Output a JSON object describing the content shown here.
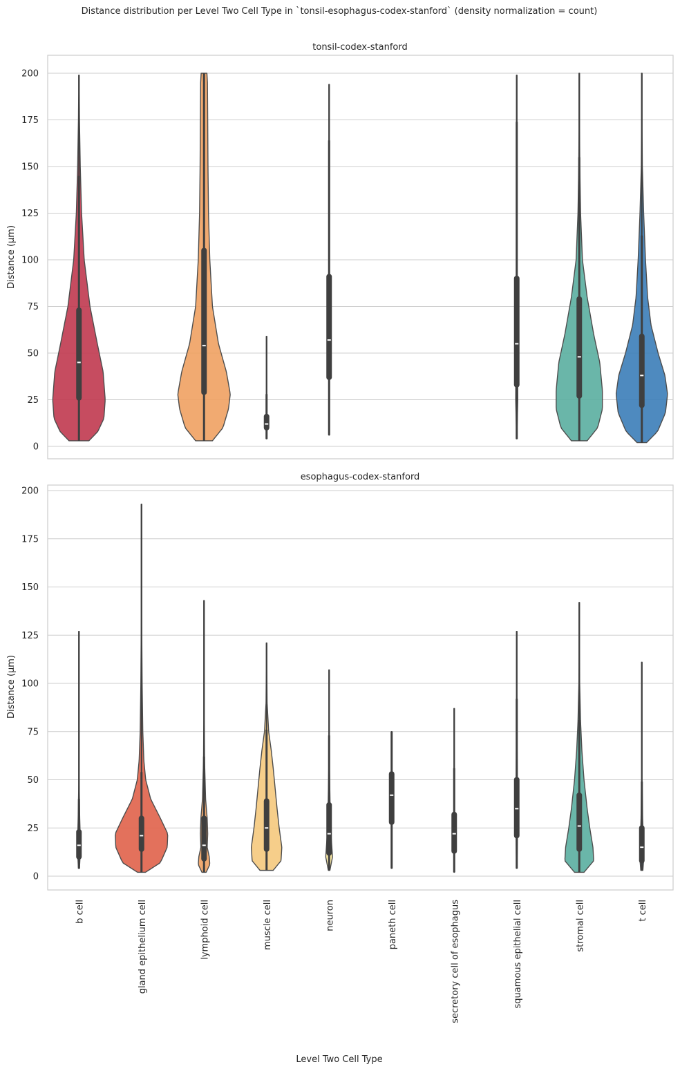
{
  "chart_data": {
    "type": "violin",
    "title": "Distance distribution per Level Two Cell Type in `tonsil-esophagus-codex-stanford` (density normalization = count)",
    "xlabel": "Level Two Cell Type",
    "ylabel": "Distance (μm)",
    "categories": [
      "b cell",
      "gland epithelium cell",
      "lymphoid cell",
      "muscle cell",
      "neuron",
      "paneth cell",
      "secretory cell of esophagus",
      "squamous epithelial cell",
      "stromal cell",
      "t cell"
    ],
    "colors": [
      "#c0394f",
      "#e0624a",
      "#f0a162",
      "#f5c97d",
      "#f7e59a",
      "#d8ecb0",
      "#a8d8a6",
      "#7fc6a4",
      "#5aaea0",
      "#3b7db8"
    ],
    "panels": [
      {
        "title": "tonsil-codex-stanford",
        "ylim": [
          -7,
          210
        ],
        "yticks": [
          0,
          25,
          50,
          75,
          100,
          125,
          150,
          175,
          200
        ],
        "violins": [
          {
            "category": "b cell",
            "min": 3,
            "max": 199,
            "q1": 26,
            "median": 45,
            "q3": 73,
            "whisker_low": 3,
            "whisker_high": 145,
            "profile": [
              [
                3,
                0.38
              ],
              [
                8,
                0.72
              ],
              [
                15,
                0.95
              ],
              [
                25,
                1.0
              ],
              [
                40,
                0.92
              ],
              [
                55,
                0.7
              ],
              [
                75,
                0.42
              ],
              [
                100,
                0.2
              ],
              [
                125,
                0.1
              ],
              [
                150,
                0.05
              ],
              [
                175,
                0.02
              ],
              [
                199,
                0.005
              ]
            ]
          },
          {
            "category": "lymphoid cell",
            "min": 3,
            "max": 200,
            "q1": 29,
            "median": 54,
            "q3": 105,
            "whisker_low": 3,
            "whisker_high": 200,
            "profile": [
              [
                3,
                0.32
              ],
              [
                10,
                0.72
              ],
              [
                20,
                0.93
              ],
              [
                28,
                1.0
              ],
              [
                40,
                0.85
              ],
              [
                55,
                0.55
              ],
              [
                75,
                0.32
              ],
              [
                100,
                0.22
              ],
              [
                125,
                0.17
              ],
              [
                150,
                0.15
              ],
              [
                175,
                0.14
              ],
              [
                195,
                0.13
              ],
              [
                200,
                0.11
              ]
            ]
          },
          {
            "category": "muscle cell",
            "min": 4,
            "max": 59,
            "q1": 10,
            "median": 12,
            "q3": 16,
            "whisker_low": 4,
            "whisker_high": 28,
            "profile": [
              [
                4,
                0.004
              ],
              [
                12,
                0.008
              ],
              [
                30,
                0.004
              ],
              [
                59,
                0.001
              ]
            ]
          },
          {
            "category": "neuron",
            "min": 6,
            "max": 194,
            "q1": 37,
            "median": 57,
            "q3": 91,
            "whisker_low": 6,
            "whisker_high": 164,
            "profile": [
              [
                6,
                0.002
              ],
              [
                50,
                0.006
              ],
              [
                90,
                0.004
              ],
              [
                194,
                0.001
              ]
            ]
          },
          {
            "category": "squamous epithelial cell",
            "min": 4,
            "max": 199,
            "q1": 33,
            "median": 55,
            "q3": 90,
            "whisker_low": 4,
            "whisker_high": 174,
            "profile": [
              [
                4,
                0.004
              ],
              [
                25,
                0.04
              ],
              [
                45,
                0.035
              ],
              [
                75,
                0.02
              ],
              [
                110,
                0.012
              ],
              [
                150,
                0.006
              ],
              [
                199,
                0.002
              ]
            ]
          },
          {
            "category": "stromal cell",
            "min": 3,
            "max": 200,
            "q1": 27,
            "median": 48,
            "q3": 79,
            "whisker_low": 3,
            "whisker_high": 155,
            "profile": [
              [
                3,
                0.3
              ],
              [
                10,
                0.7
              ],
              [
                20,
                0.88
              ],
              [
                30,
                0.88
              ],
              [
                45,
                0.78
              ],
              [
                60,
                0.55
              ],
              [
                80,
                0.3
              ],
              [
                100,
                0.12
              ],
              [
                125,
                0.05
              ],
              [
                150,
                0.02
              ],
              [
                175,
                0.008
              ],
              [
                200,
                0.004
              ]
            ]
          },
          {
            "category": "t cell",
            "min": 2,
            "max": 200,
            "q1": 22,
            "median": 38,
            "q3": 59,
            "whisker_low": 2,
            "whisker_high": 113,
            "profile": [
              [
                2,
                0.18
              ],
              [
                8,
                0.6
              ],
              [
                18,
                0.9
              ],
              [
                28,
                0.98
              ],
              [
                38,
                0.88
              ],
              [
                50,
                0.62
              ],
              [
                65,
                0.35
              ],
              [
                80,
                0.22
              ],
              [
                100,
                0.14
              ],
              [
                125,
                0.07
              ],
              [
                150,
                0.02
              ],
              [
                175,
                0.008
              ],
              [
                200,
                0.004
              ]
            ]
          }
        ]
      },
      {
        "title": "esophagus-codex-stanford",
        "ylim": [
          -7,
          202
        ],
        "yticks": [
          0,
          25,
          50,
          75,
          100,
          125,
          150,
          175,
          200
        ],
        "violins": [
          {
            "category": "b cell",
            "min": 4,
            "max": 127,
            "q1": 10,
            "median": 16,
            "q3": 23,
            "whisker_low": 4,
            "whisker_high": 40,
            "profile": [
              [
                4,
                0.02
              ],
              [
                12,
                0.05
              ],
              [
                20,
                0.05
              ],
              [
                30,
                0.03
              ],
              [
                45,
                0.012
              ],
              [
                70,
                0.005
              ],
              [
                127,
                0.001
              ]
            ]
          },
          {
            "category": "gland epithelium cell",
            "min": 2,
            "max": 193,
            "q1": 14,
            "median": 21,
            "q3": 30,
            "whisker_low": 2,
            "whisker_high": 54,
            "profile": [
              [
                2,
                0.15
              ],
              [
                7,
                0.72
              ],
              [
                15,
                0.98
              ],
              [
                22,
                1.0
              ],
              [
                30,
                0.72
              ],
              [
                40,
                0.35
              ],
              [
                50,
                0.16
              ],
              [
                60,
                0.09
              ],
              [
                75,
                0.05
              ],
              [
                100,
                0.025
              ],
              [
                125,
                0.012
              ],
              [
                150,
                0.008
              ],
              [
                175,
                0.004
              ],
              [
                193,
                0.002
              ]
            ]
          },
          {
            "category": "lymphoid cell",
            "min": 2,
            "max": 143,
            "q1": 9,
            "median": 16,
            "q3": 30,
            "whisker_low": 2,
            "whisker_high": 62,
            "profile": [
              [
                2,
                0.08
              ],
              [
                6,
                0.22
              ],
              [
                10,
                0.2
              ],
              [
                15,
                0.12
              ],
              [
                22,
                0.14
              ],
              [
                30,
                0.12
              ],
              [
                40,
                0.06
              ],
              [
                60,
                0.02
              ],
              [
                90,
                0.006
              ],
              [
                143,
                0.001
              ]
            ]
          },
          {
            "category": "muscle cell",
            "min": 3,
            "max": 121,
            "q1": 14,
            "median": 25,
            "q3": 39,
            "whisker_low": 3,
            "whisker_high": 76,
            "profile": [
              [
                3,
                0.25
              ],
              [
                8,
                0.55
              ],
              [
                15,
                0.58
              ],
              [
                25,
                0.48
              ],
              [
                35,
                0.4
              ],
              [
                45,
                0.33
              ],
              [
                55,
                0.26
              ],
              [
                65,
                0.18
              ],
              [
                75,
                0.08
              ],
              [
                90,
                0.02
              ],
              [
                121,
                0.003
              ]
            ]
          },
          {
            "category": "neuron",
            "min": 3,
            "max": 107,
            "q1": 12,
            "median": 22,
            "q3": 37,
            "whisker_low": 3,
            "whisker_high": 73,
            "profile": [
              [
                3,
                0.03
              ],
              [
                10,
                0.13
              ],
              [
                20,
                0.08
              ],
              [
                35,
                0.04
              ],
              [
                55,
                0.015
              ],
              [
                80,
                0.004
              ],
              [
                107,
                0.001
              ]
            ]
          },
          {
            "category": "paneth cell",
            "min": 4,
            "max": 75,
            "q1": 28,
            "median": 42,
            "q3": 53,
            "whisker_low": 4,
            "whisker_high": 75,
            "profile": [
              [
                4,
                0.004
              ],
              [
                40,
                0.01
              ],
              [
                75,
                0.004
              ]
            ]
          },
          {
            "category": "secretory cell of esophagus",
            "min": 2,
            "max": 87,
            "q1": 13,
            "median": 22,
            "q3": 32,
            "whisker_low": 2,
            "whisker_high": 56,
            "profile": [
              [
                2,
                0.004
              ],
              [
                20,
                0.012
              ],
              [
                50,
                0.005
              ],
              [
                87,
                0.001
              ]
            ]
          },
          {
            "category": "squamous epithelial cell",
            "min": 4,
            "max": 127,
            "q1": 21,
            "median": 35,
            "q3": 50,
            "whisker_low": 4,
            "whisker_high": 92,
            "profile": [
              [
                4,
                0.01
              ],
              [
                20,
                0.025
              ],
              [
                35,
                0.03
              ],
              [
                55,
                0.02
              ],
              [
                80,
                0.008
              ],
              [
                127,
                0.002
              ]
            ]
          },
          {
            "category": "stromal cell",
            "min": 2,
            "max": 142,
            "q1": 14,
            "median": 26,
            "q3": 42,
            "whisker_low": 2,
            "whisker_high": 81,
            "profile": [
              [
                2,
                0.18
              ],
              [
                8,
                0.55
              ],
              [
                15,
                0.52
              ],
              [
                25,
                0.4
              ],
              [
                35,
                0.3
              ],
              [
                50,
                0.18
              ],
              [
                65,
                0.1
              ],
              [
                80,
                0.05
              ],
              [
                100,
                0.015
              ],
              [
                142,
                0.002
              ]
            ]
          },
          {
            "category": "t cell",
            "min": 3,
            "max": 111,
            "q1": 8,
            "median": 15,
            "q3": 25,
            "whisker_low": 3,
            "whisker_high": 49,
            "profile": [
              [
                3,
                0.04
              ],
              [
                10,
                0.08
              ],
              [
                18,
                0.06
              ],
              [
                30,
                0.03
              ],
              [
                50,
                0.01
              ],
              [
                111,
                0.001
              ]
            ]
          }
        ]
      }
    ]
  }
}
